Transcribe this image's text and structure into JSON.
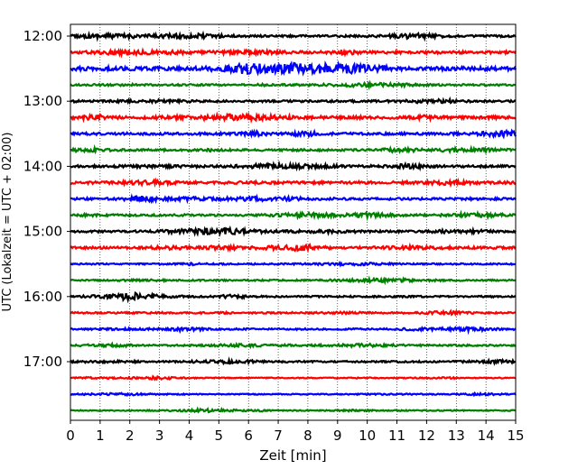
{
  "chart_data": {
    "type": "line",
    "title": "",
    "xlabel": "Zeit  [min]",
    "ylabel": "UTC (Lokalzeit = UTC + 02:00)",
    "xlim": [
      0,
      15
    ],
    "x_ticks": [
      0,
      1,
      2,
      3,
      4,
      5,
      6,
      7,
      8,
      9,
      10,
      11,
      12,
      13,
      14,
      15
    ],
    "x_tick_labels": [
      "0",
      "1",
      "2",
      "3",
      "4",
      "5",
      "6",
      "7",
      "8",
      "9",
      "10",
      "11",
      "12",
      "13",
      "14",
      "15"
    ],
    "y_tick_labels": [
      "12:00",
      "13:00",
      "14:00",
      "15:00",
      "16:00",
      "17:00"
    ],
    "y_tick_traces": [
      0,
      4,
      8,
      12,
      16,
      20
    ],
    "grid": "vertical-dotted",
    "color_cycle": [
      "#000000",
      "#ff0000",
      "#0000ff",
      "#008000"
    ],
    "series": [
      {
        "start": "12:00",
        "amplitude": 1.0
      },
      {
        "start": "12:15",
        "amplitude": 1.3
      },
      {
        "start": "12:30",
        "amplitude": 1.8
      },
      {
        "start": "12:45",
        "amplitude": 0.9
      },
      {
        "start": "13:00",
        "amplitude": 1.0
      },
      {
        "start": "13:15",
        "amplitude": 1.4
      },
      {
        "start": "13:30",
        "amplitude": 1.2
      },
      {
        "start": "13:45",
        "amplitude": 1.0
      },
      {
        "start": "14:00",
        "amplitude": 1.1
      },
      {
        "start": "14:15",
        "amplitude": 1.3
      },
      {
        "start": "14:30",
        "amplitude": 1.1
      },
      {
        "start": "14:45",
        "amplitude": 1.0
      },
      {
        "start": "15:00",
        "amplitude": 1.0
      },
      {
        "start": "15:15",
        "amplitude": 1.1
      },
      {
        "start": "15:30",
        "amplitude": 0.7
      },
      {
        "start": "15:45",
        "amplitude": 0.7
      },
      {
        "start": "16:00",
        "amplitude": 0.8
      },
      {
        "start": "16:15",
        "amplitude": 0.8
      },
      {
        "start": "16:30",
        "amplitude": 0.8
      },
      {
        "start": "16:45",
        "amplitude": 0.8
      },
      {
        "start": "17:00",
        "amplitude": 0.8
      },
      {
        "start": "17:15",
        "amplitude": 0.5
      },
      {
        "start": "17:30",
        "amplitude": 0.5
      },
      {
        "start": "17:45",
        "amplitude": 0.5
      }
    ]
  }
}
